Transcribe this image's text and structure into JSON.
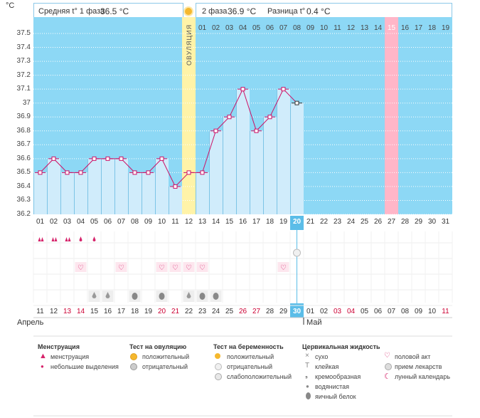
{
  "header": {
    "unit": "°C",
    "phase1_label": "Средняя t° 1 фаза",
    "phase1_value": "36.5 °C",
    "phase2_label": "2 фаза",
    "phase2_value": "36.9 °C",
    "diff_label": "Разница t°",
    "diff_value": "0.4 °C"
  },
  "ovulation_label": "ОВУЛЯЦИЯ",
  "chart_data": {
    "type": "line",
    "title": "",
    "xlabel": "",
    "ylabel": "°C",
    "ylim": [
      36.2,
      37.5
    ],
    "yticks": [
      "36.2",
      "36.3",
      "36.4",
      "36.5",
      "36.6",
      "36.7",
      "36.8",
      "36.9",
      "37",
      "37.1",
      "37.2",
      "37.3",
      "37.4",
      "37.5"
    ],
    "cycle_days": [
      "01",
      "02",
      "03",
      "04",
      "05",
      "06",
      "07",
      "08",
      "09",
      "10",
      "11",
      "12",
      "13",
      "14",
      "15",
      "16",
      "17",
      "18",
      "19",
      "20",
      "21",
      "22",
      "23",
      "24",
      "25",
      "26",
      "27",
      "28",
      "29",
      "30",
      "31"
    ],
    "phase2_day_labels": [
      "01",
      "02",
      "03",
      "04",
      "05",
      "06",
      "07",
      "08",
      "09",
      "10",
      "11",
      "12",
      "13",
      "14",
      "15",
      "16",
      "17",
      "18",
      "19"
    ],
    "series": [
      {
        "values": [
          36.5,
          36.6,
          36.5,
          36.5,
          36.6,
          36.6,
          36.6,
          36.5,
          36.5,
          36.6,
          36.4,
          36.5,
          36.5,
          36.8,
          36.9,
          37.1,
          36.8,
          36.9,
          37.1,
          37.0
        ]
      }
    ],
    "ovulation_day_index": 11,
    "current_day_index": 19,
    "pink_day_index": 26,
    "grid": true
  },
  "calendar": {
    "dates": [
      "11",
      "12",
      "13",
      "14",
      "15",
      "16",
      "17",
      "18",
      "19",
      "20",
      "21",
      "22",
      "23",
      "24",
      "25",
      "26",
      "27",
      "28",
      "29",
      "30",
      "01",
      "02",
      "03",
      "04",
      "05",
      "06",
      "07",
      "08",
      "09",
      "10",
      "11"
    ],
    "red_dates": [
      2,
      3,
      9,
      10,
      15,
      16,
      22,
      23,
      30
    ],
    "month1": "Апрель",
    "month2": "Май"
  },
  "symptoms": {
    "menstruation_days": [
      0,
      1,
      2
    ],
    "spotting_days": [
      3,
      4
    ],
    "pregnancy_test_day": 19,
    "intercourse_days": [
      3,
      6,
      9,
      10,
      11,
      12,
      18
    ],
    "watery_days": [
      4,
      5,
      11,
      13
    ],
    "egg_white_days": [
      7,
      9,
      12,
      13
    ]
  },
  "legend": {
    "menstruation": {
      "title": "Менструация",
      "items": [
        "менструация",
        "небольшие выделения"
      ]
    },
    "ovulation_test": {
      "title": "Тест на овуляцию",
      "items": [
        "положительный",
        "отрицательный"
      ]
    },
    "pregnancy_test": {
      "title": "Тест на беременность",
      "items": [
        "положительный",
        "отрицательный",
        "слабоположительный"
      ]
    },
    "cervical": {
      "title": "Цервикальная жидкость",
      "items": [
        "сухо",
        "клейкая",
        "кремообразная",
        "водянистая",
        "яичный белок"
      ]
    },
    "other": {
      "items": [
        "половой акт",
        "прием лекарств",
        "лунный календарь"
      ]
    }
  },
  "colors": {
    "bg": "#8dd8f5",
    "bar": "#d0ecfb",
    "line": "#cc1166",
    "ovulation": "#fff3a8",
    "pink": "#ffb6c8",
    "current": "#5bbde8",
    "red_text": "#cc0033"
  }
}
